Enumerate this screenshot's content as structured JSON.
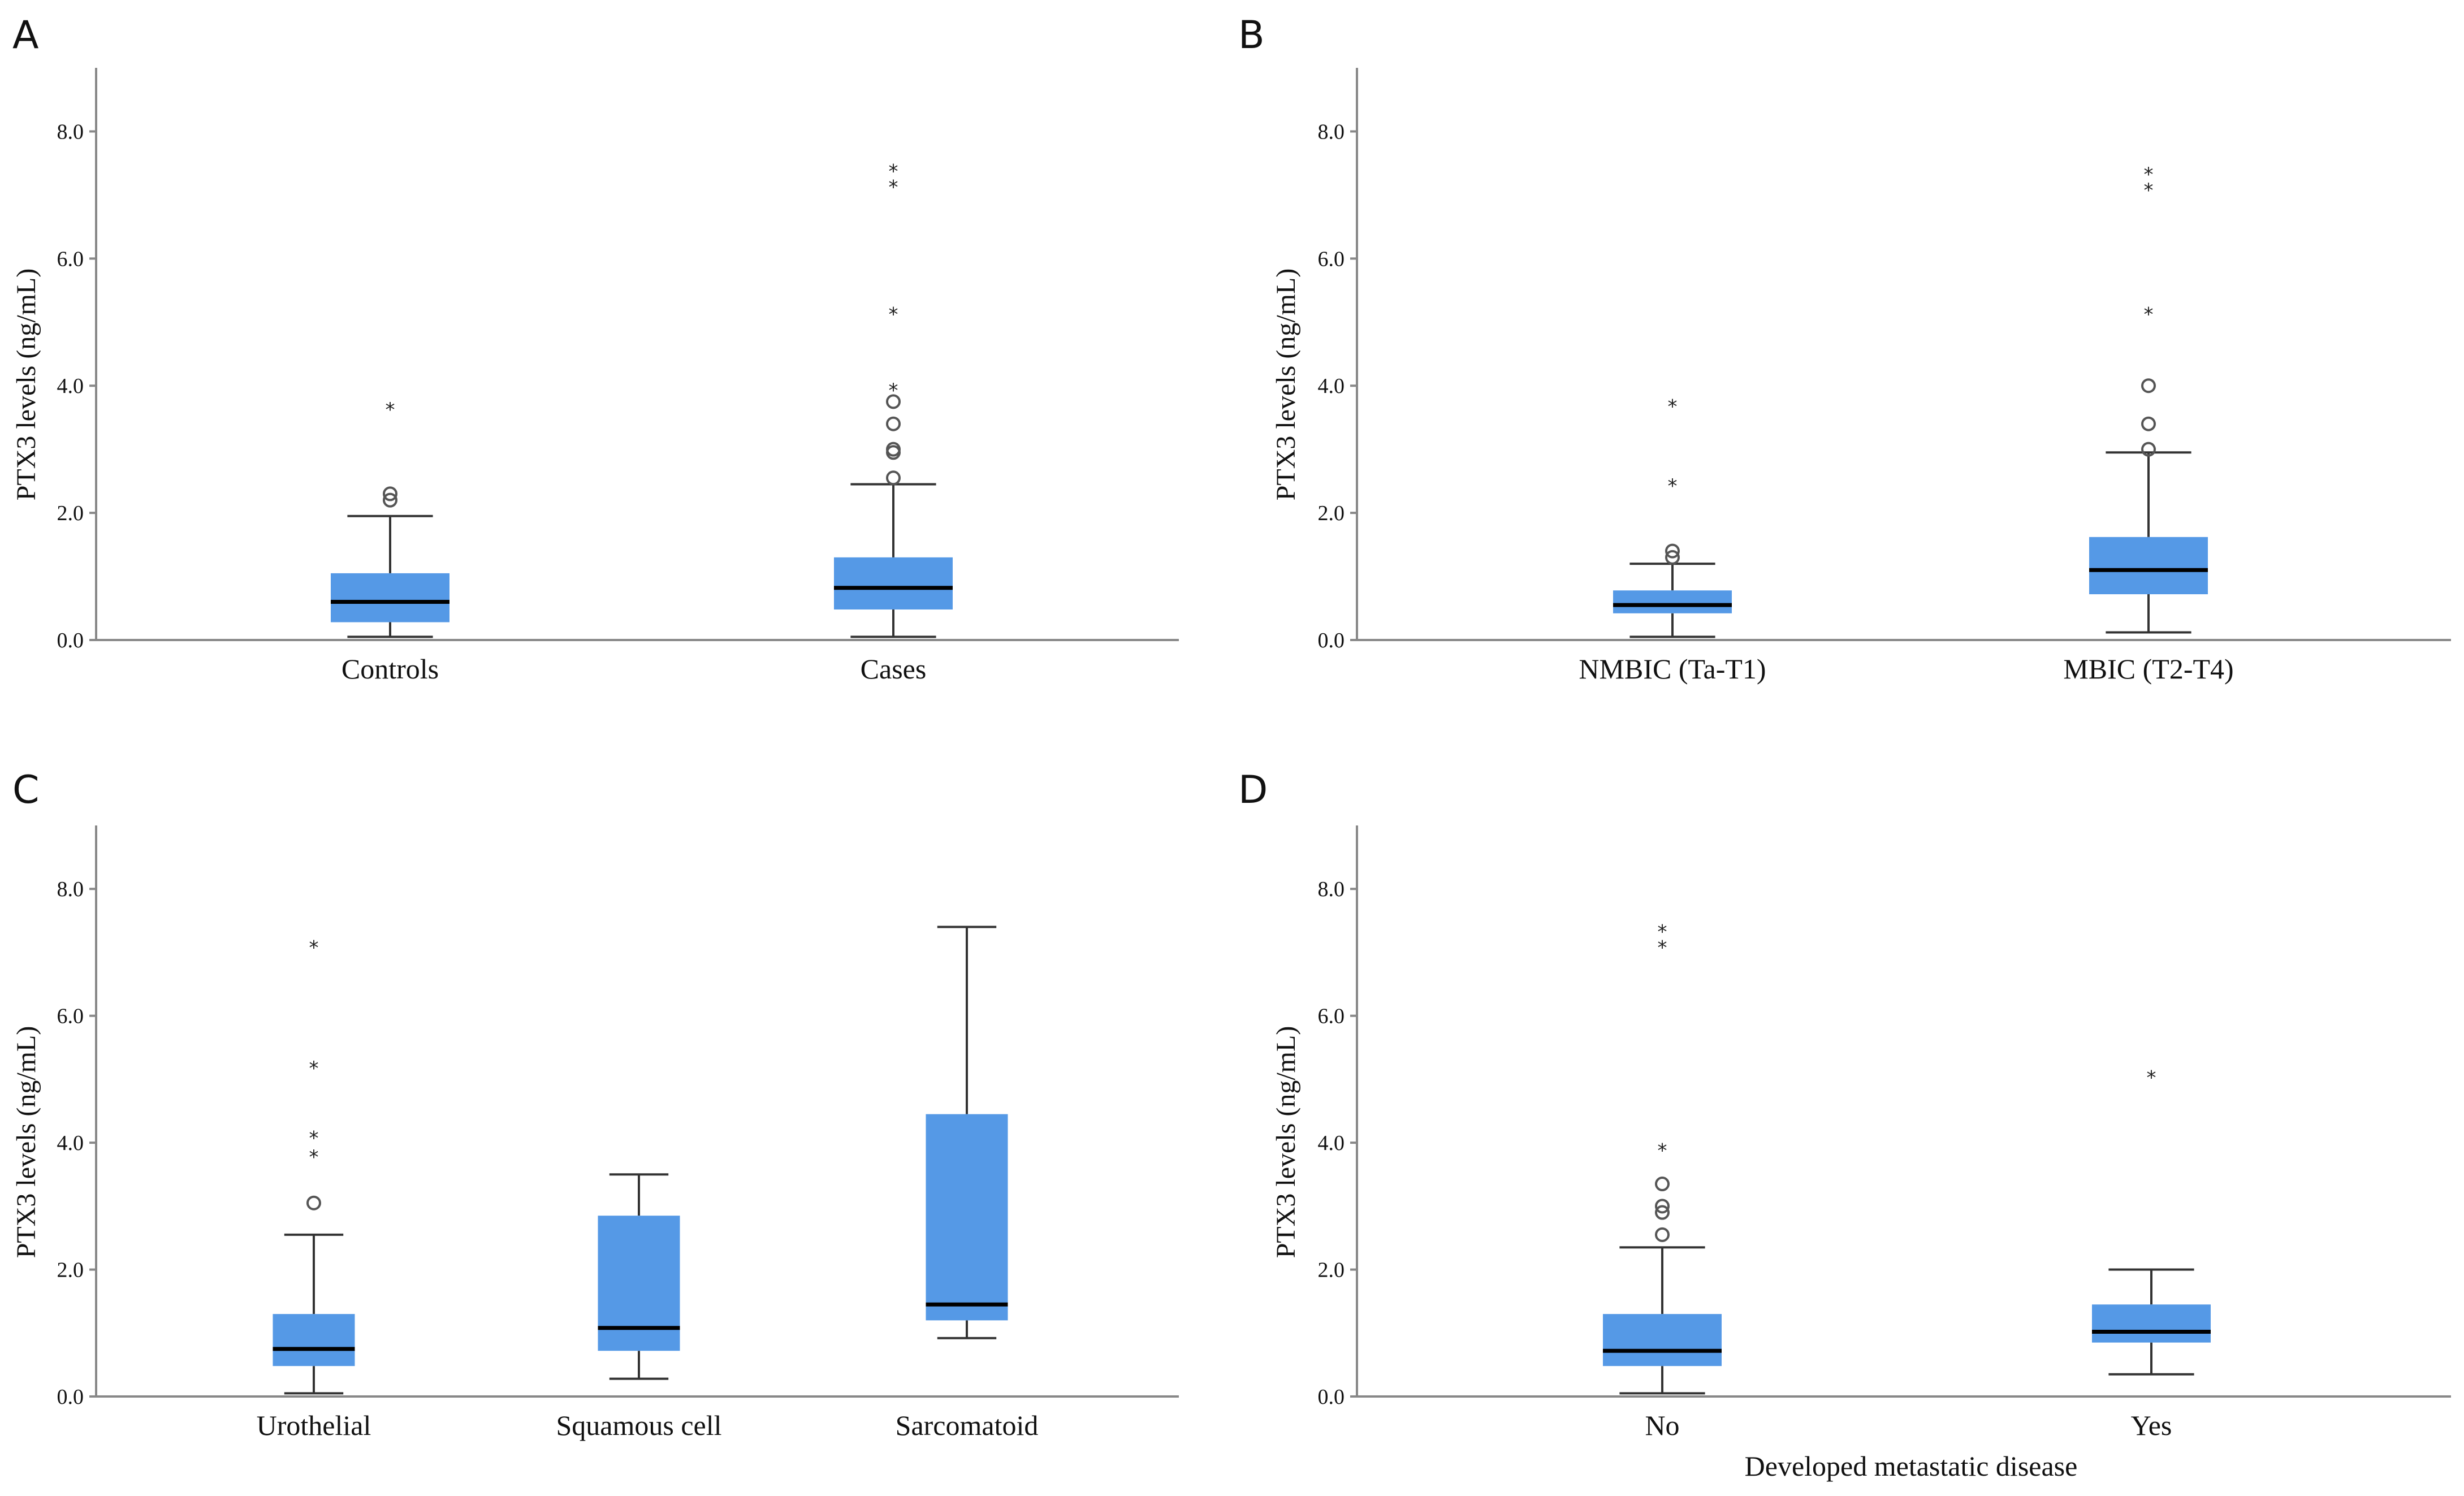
{
  "style": {
    "box_color": "#5599e6",
    "median_color": "#000000",
    "axis_color": "#888888"
  },
  "chart_data": [
    {
      "type": "boxplot",
      "panel": "A",
      "ylabel": "PTX3 levels (ng/mL)",
      "xlabel": "",
      "ylim": [
        0,
        9
      ],
      "yticks": [
        "0.0",
        "2.0",
        "4.0",
        "6.0",
        "8.0"
      ],
      "grid": false,
      "groups": [
        {
          "name": "Controls",
          "whisker_low": 0.05,
          "q1": 0.28,
          "median": 0.6,
          "q3": 1.05,
          "whisker_high": 1.95,
          "outliers_circle": [
            2.2,
            2.3
          ],
          "outliers_star": [
            3.7
          ]
        },
        {
          "name": "Cases",
          "whisker_low": 0.05,
          "q1": 0.48,
          "median": 0.82,
          "q3": 1.3,
          "whisker_high": 2.45,
          "outliers_circle": [
            2.55,
            2.95,
            3.0,
            3.4,
            3.75
          ],
          "outliers_star": [
            4.0,
            5.2,
            7.2,
            7.45
          ]
        }
      ]
    },
    {
      "type": "boxplot",
      "panel": "B",
      "ylabel": "PTX3 levels (ng/mL)",
      "xlabel": "",
      "ylim": [
        0,
        9
      ],
      "yticks": [
        "0.0",
        "2.0",
        "4.0",
        "6.0",
        "8.0"
      ],
      "grid": false,
      "groups": [
        {
          "name": "NMBIC (Ta-T1)",
          "whisker_low": 0.05,
          "q1": 0.42,
          "median": 0.55,
          "q3": 0.78,
          "whisker_high": 1.2,
          "outliers_circle": [
            1.3,
            1.4
          ],
          "outliers_star": [
            2.5,
            3.75
          ]
        },
        {
          "name": "MBIC (T2-T4)",
          "whisker_low": 0.12,
          "q1": 0.72,
          "median": 1.1,
          "q3": 1.62,
          "whisker_high": 2.95,
          "outliers_circle": [
            3.0,
            3.4,
            4.0
          ],
          "outliers_star": [
            5.2,
            7.15,
            7.4
          ]
        }
      ]
    },
    {
      "type": "boxplot",
      "panel": "C",
      "ylabel": "PTX3 levels (ng/mL)",
      "xlabel": "",
      "ylim": [
        0,
        9
      ],
      "yticks": [
        "0.0",
        "2.0",
        "4.0",
        "6.0",
        "8.0"
      ],
      "grid": false,
      "groups": [
        {
          "name": "Urothelial",
          "whisker_low": 0.05,
          "q1": 0.48,
          "median": 0.75,
          "q3": 1.3,
          "whisker_high": 2.55,
          "outliers_circle": [
            3.05
          ],
          "outliers_star": [
            3.85,
            4.15,
            5.25,
            7.15
          ]
        },
        {
          "name": "Squamous cell",
          "whisker_low": 0.28,
          "q1": 0.72,
          "median": 1.08,
          "q3": 2.85,
          "whisker_high": 3.5,
          "outliers_circle": [],
          "outliers_star": []
        },
        {
          "name": "Sarcomatoid",
          "whisker_low": 0.92,
          "q1": 1.2,
          "median": 1.45,
          "q3": 4.45,
          "whisker_high": 7.4,
          "outliers_circle": [],
          "outliers_star": []
        }
      ]
    },
    {
      "type": "boxplot",
      "panel": "D",
      "ylabel": "PTX3 levels (ng/mL)",
      "xlabel": "Developed metastatic disease",
      "ylim": [
        0,
        9
      ],
      "yticks": [
        "0.0",
        "2.0",
        "4.0",
        "6.0",
        "8.0"
      ],
      "grid": false,
      "groups": [
        {
          "name": "No",
          "whisker_low": 0.05,
          "q1": 0.48,
          "median": 0.72,
          "q3": 1.3,
          "whisker_high": 2.35,
          "outliers_circle": [
            2.55,
            2.9,
            3.0,
            3.35
          ],
          "outliers_star": [
            3.95,
            7.15,
            7.4
          ]
        },
        {
          "name": "Yes",
          "whisker_low": 0.35,
          "q1": 0.85,
          "median": 1.02,
          "q3": 1.45,
          "whisker_high": 2.0,
          "outliers_circle": [],
          "outliers_star": [
            5.1
          ]
        }
      ]
    }
  ]
}
